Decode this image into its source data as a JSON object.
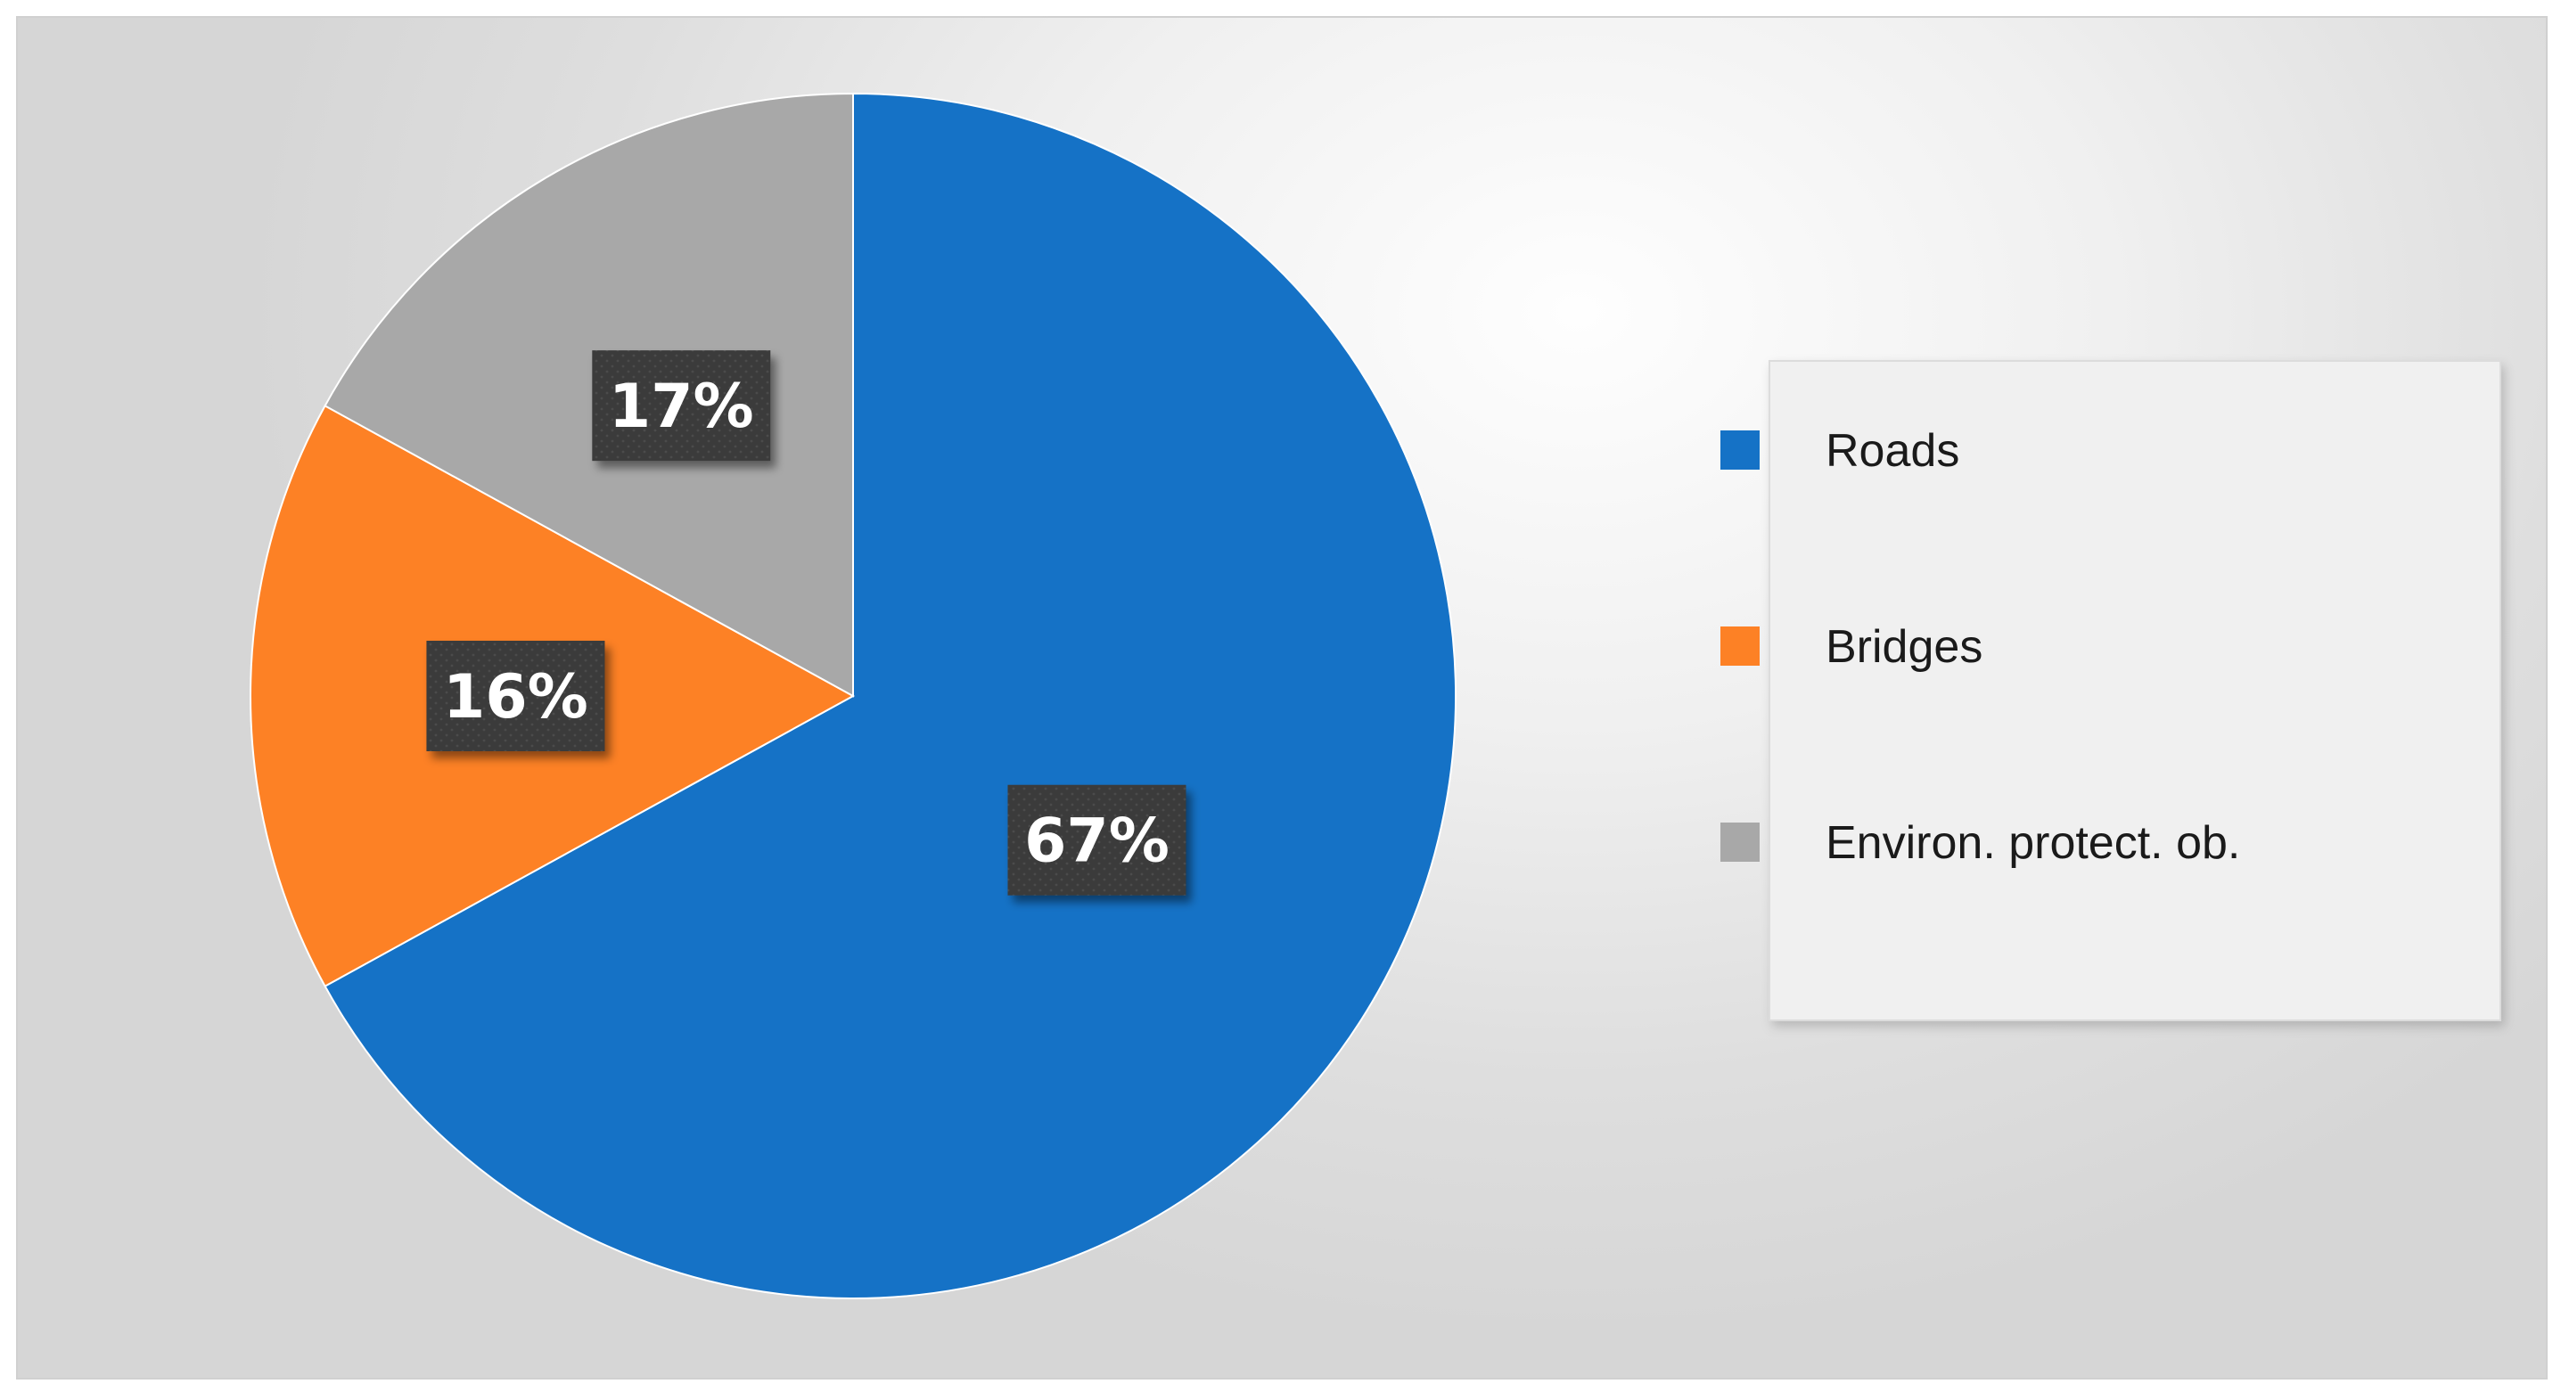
{
  "chart_data": {
    "type": "pie",
    "categories": [
      "Roads",
      "Bridges",
      "Environ. protect. ob."
    ],
    "values": [
      67,
      16,
      17
    ],
    "labels": [
      "67%",
      "16%",
      "17%"
    ],
    "colors": [
      "#1572c6",
      "#fd8125",
      "#a8a8a8"
    ],
    "start": "12 o'clock",
    "direction": "clockwise",
    "legend": "right",
    "data_label_style": "white bold text on dark boxes"
  }
}
